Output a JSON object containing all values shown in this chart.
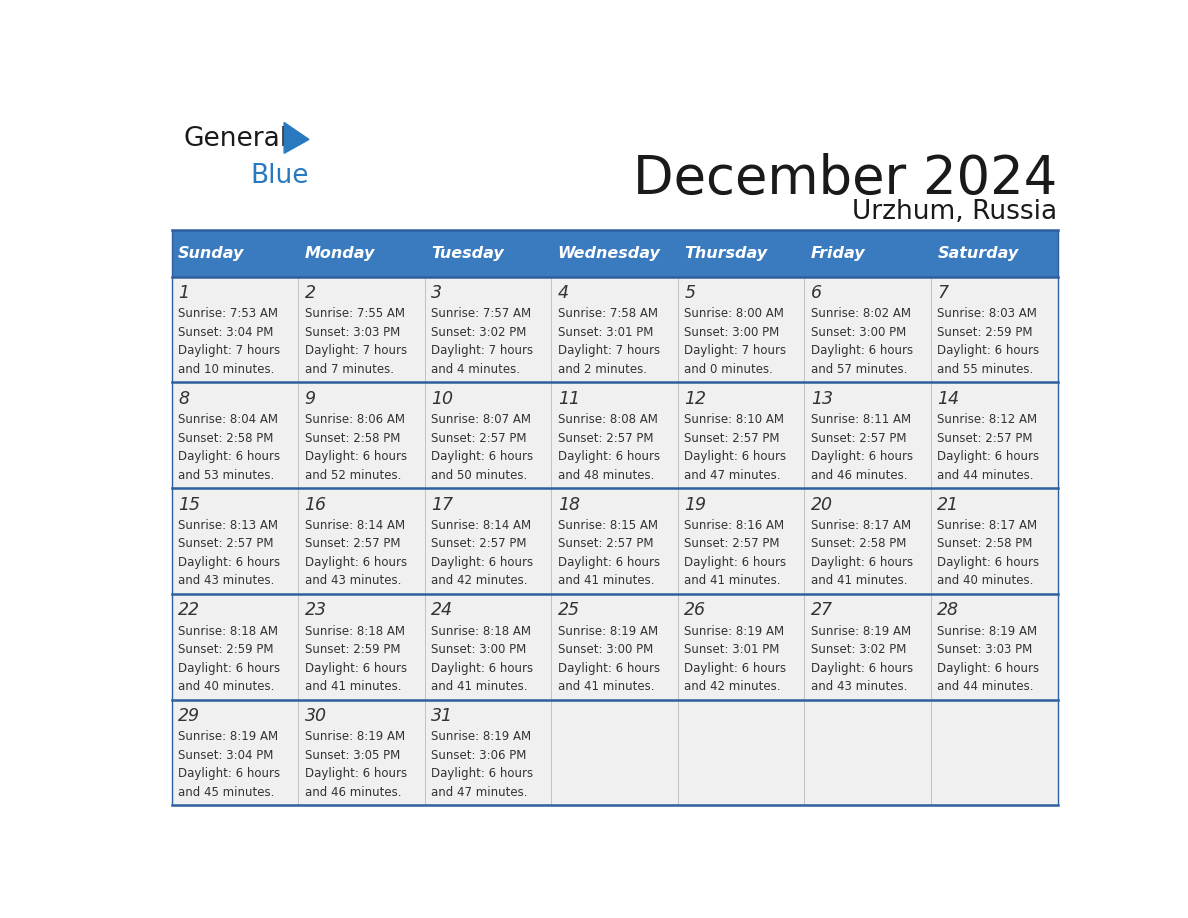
{
  "title": "December 2024",
  "subtitle": "Urzhum, Russia",
  "header_color": "#3a7abf",
  "header_text_color": "#ffffff",
  "cell_bg_color": "#f0f0f0",
  "border_color": "#2e5f9e",
  "text_color": "#333333",
  "days_of_week": [
    "Sunday",
    "Monday",
    "Tuesday",
    "Wednesday",
    "Thursday",
    "Friday",
    "Saturday"
  ],
  "calendar": [
    [
      {
        "day": "1",
        "sunrise": "7:53 AM",
        "sunset": "3:04 PM",
        "daylight_h": "7 hours",
        "daylight_m": "and 10 minutes."
      },
      {
        "day": "2",
        "sunrise": "7:55 AM",
        "sunset": "3:03 PM",
        "daylight_h": "7 hours",
        "daylight_m": "and 7 minutes."
      },
      {
        "day": "3",
        "sunrise": "7:57 AM",
        "sunset": "3:02 PM",
        "daylight_h": "7 hours",
        "daylight_m": "and 4 minutes."
      },
      {
        "day": "4",
        "sunrise": "7:58 AM",
        "sunset": "3:01 PM",
        "daylight_h": "7 hours",
        "daylight_m": "and 2 minutes."
      },
      {
        "day": "5",
        "sunrise": "8:00 AM",
        "sunset": "3:00 PM",
        "daylight_h": "7 hours",
        "daylight_m": "and 0 minutes."
      },
      {
        "day": "6",
        "sunrise": "8:02 AM",
        "sunset": "3:00 PM",
        "daylight_h": "6 hours",
        "daylight_m": "and 57 minutes."
      },
      {
        "day": "7",
        "sunrise": "8:03 AM",
        "sunset": "2:59 PM",
        "daylight_h": "6 hours",
        "daylight_m": "and 55 minutes."
      }
    ],
    [
      {
        "day": "8",
        "sunrise": "8:04 AM",
        "sunset": "2:58 PM",
        "daylight_h": "6 hours",
        "daylight_m": "and 53 minutes."
      },
      {
        "day": "9",
        "sunrise": "8:06 AM",
        "sunset": "2:58 PM",
        "daylight_h": "6 hours",
        "daylight_m": "and 52 minutes."
      },
      {
        "day": "10",
        "sunrise": "8:07 AM",
        "sunset": "2:57 PM",
        "daylight_h": "6 hours",
        "daylight_m": "and 50 minutes."
      },
      {
        "day": "11",
        "sunrise": "8:08 AM",
        "sunset": "2:57 PM",
        "daylight_h": "6 hours",
        "daylight_m": "and 48 minutes."
      },
      {
        "day": "12",
        "sunrise": "8:10 AM",
        "sunset": "2:57 PM",
        "daylight_h": "6 hours",
        "daylight_m": "and 47 minutes."
      },
      {
        "day": "13",
        "sunrise": "8:11 AM",
        "sunset": "2:57 PM",
        "daylight_h": "6 hours",
        "daylight_m": "and 46 minutes."
      },
      {
        "day": "14",
        "sunrise": "8:12 AM",
        "sunset": "2:57 PM",
        "daylight_h": "6 hours",
        "daylight_m": "and 44 minutes."
      }
    ],
    [
      {
        "day": "15",
        "sunrise": "8:13 AM",
        "sunset": "2:57 PM",
        "daylight_h": "6 hours",
        "daylight_m": "and 43 minutes."
      },
      {
        "day": "16",
        "sunrise": "8:14 AM",
        "sunset": "2:57 PM",
        "daylight_h": "6 hours",
        "daylight_m": "and 43 minutes."
      },
      {
        "day": "17",
        "sunrise": "8:14 AM",
        "sunset": "2:57 PM",
        "daylight_h": "6 hours",
        "daylight_m": "and 42 minutes."
      },
      {
        "day": "18",
        "sunrise": "8:15 AM",
        "sunset": "2:57 PM",
        "daylight_h": "6 hours",
        "daylight_m": "and 41 minutes."
      },
      {
        "day": "19",
        "sunrise": "8:16 AM",
        "sunset": "2:57 PM",
        "daylight_h": "6 hours",
        "daylight_m": "and 41 minutes."
      },
      {
        "day": "20",
        "sunrise": "8:17 AM",
        "sunset": "2:58 PM",
        "daylight_h": "6 hours",
        "daylight_m": "and 41 minutes."
      },
      {
        "day": "21",
        "sunrise": "8:17 AM",
        "sunset": "2:58 PM",
        "daylight_h": "6 hours",
        "daylight_m": "and 40 minutes."
      }
    ],
    [
      {
        "day": "22",
        "sunrise": "8:18 AM",
        "sunset": "2:59 PM",
        "daylight_h": "6 hours",
        "daylight_m": "and 40 minutes."
      },
      {
        "day": "23",
        "sunrise": "8:18 AM",
        "sunset": "2:59 PM",
        "daylight_h": "6 hours",
        "daylight_m": "and 41 minutes."
      },
      {
        "day": "24",
        "sunrise": "8:18 AM",
        "sunset": "3:00 PM",
        "daylight_h": "6 hours",
        "daylight_m": "and 41 minutes."
      },
      {
        "day": "25",
        "sunrise": "8:19 AM",
        "sunset": "3:00 PM",
        "daylight_h": "6 hours",
        "daylight_m": "and 41 minutes."
      },
      {
        "day": "26",
        "sunrise": "8:19 AM",
        "sunset": "3:01 PM",
        "daylight_h": "6 hours",
        "daylight_m": "and 42 minutes."
      },
      {
        "day": "27",
        "sunrise": "8:19 AM",
        "sunset": "3:02 PM",
        "daylight_h": "6 hours",
        "daylight_m": "and 43 minutes."
      },
      {
        "day": "28",
        "sunrise": "8:19 AM",
        "sunset": "3:03 PM",
        "daylight_h": "6 hours",
        "daylight_m": "and 44 minutes."
      }
    ],
    [
      {
        "day": "29",
        "sunrise": "8:19 AM",
        "sunset": "3:04 PM",
        "daylight_h": "6 hours",
        "daylight_m": "and 45 minutes."
      },
      {
        "day": "30",
        "sunrise": "8:19 AM",
        "sunset": "3:05 PM",
        "daylight_h": "6 hours",
        "daylight_m": "and 46 minutes."
      },
      {
        "day": "31",
        "sunrise": "8:19 AM",
        "sunset": "3:06 PM",
        "daylight_h": "6 hours",
        "daylight_m": "and 47 minutes."
      },
      null,
      null,
      null,
      null
    ]
  ],
  "logo_general_color": "#1a1a1a",
  "logo_blue_color": "#2979c0",
  "logo_triangle_color": "#2979c0"
}
